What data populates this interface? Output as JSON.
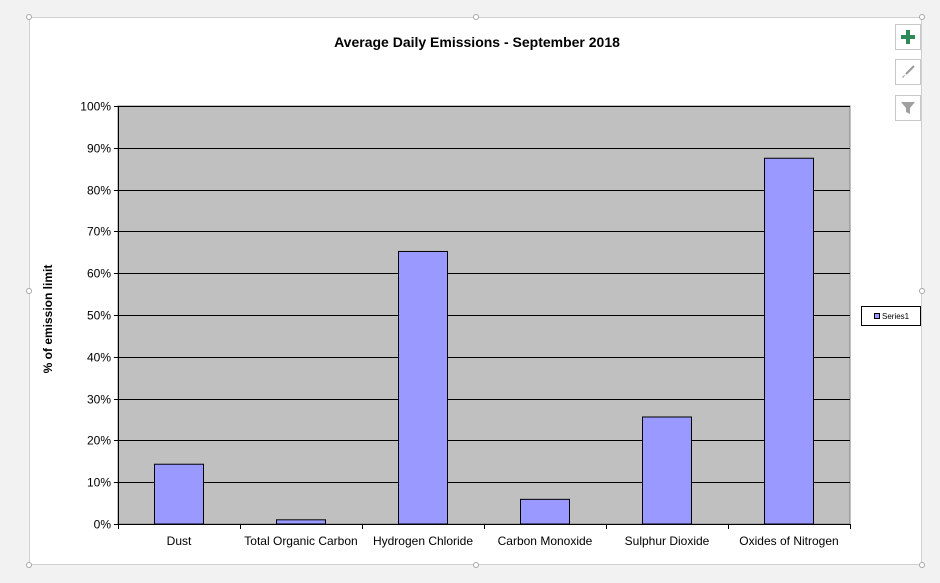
{
  "chart_data": {
    "type": "bar",
    "title": "Average Daily Emissions - September 2018",
    "xlabel": "",
    "ylabel": "% of emission limit",
    "categories": [
      "Dust",
      "Total Organic Carbon",
      "Hydrogen Chloride",
      "Carbon Monoxide",
      "Sulphur Dioxide",
      "Oxides of Nitrogen"
    ],
    "series": [
      {
        "name": "Series1",
        "values": [
          14.3,
          1.0,
          65.2,
          5.9,
          25.6,
          87.5
        ]
      }
    ],
    "ylim": [
      0,
      100
    ],
    "yticks": [
      0,
      10,
      20,
      30,
      40,
      50,
      60,
      70,
      80,
      90,
      100
    ],
    "ytick_labels": [
      "0%",
      "10%",
      "20%",
      "30%",
      "40%",
      "50%",
      "60%",
      "70%",
      "80%",
      "90%",
      "100%"
    ],
    "grid": true,
    "legend": "right",
    "colors": {
      "bar_fill": "#9999ff",
      "bar_stroke": "#000000",
      "plot_background": "#c0c0c0",
      "gridline": "#000000"
    }
  },
  "toolbar": {
    "add_icon": "plus-icon",
    "style_icon": "brush-icon",
    "filter_icon": "filter-icon"
  }
}
